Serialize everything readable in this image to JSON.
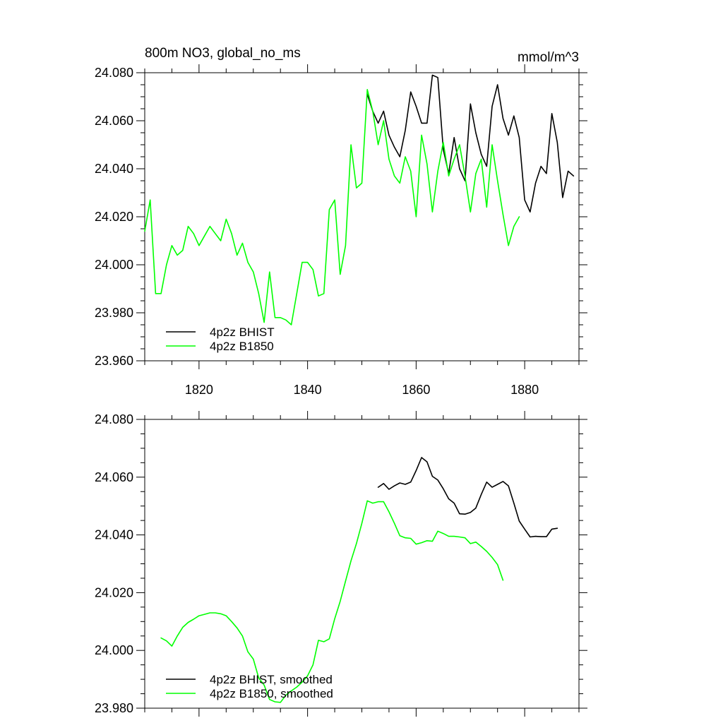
{
  "chart_data": [
    {
      "type": "line",
      "title": "800m NO3, global_no_ms",
      "units": "mmol/m^3",
      "xlabel": "",
      "ylabel": "",
      "xlim": [
        1810,
        1890
      ],
      "ylim": [
        23.96,
        24.08
      ],
      "x_ticks": [
        1820,
        1840,
        1860,
        1880
      ],
      "x_tick_labels": [
        "1820",
        "1840",
        "1860",
        "1880"
      ],
      "y_ticks": [
        23.96,
        23.98,
        24.0,
        24.02,
        24.04,
        24.06,
        24.08
      ],
      "y_tick_labels": [
        "23.960",
        "23.980",
        "24.000",
        "24.020",
        "24.040",
        "24.060",
        "24.080"
      ],
      "legend_position": "bottom-left",
      "series": [
        {
          "name": "4p2z BHIST",
          "color": "#000000",
          "x": [
            1851,
            1852,
            1853,
            1854,
            1855,
            1856,
            1857,
            1858,
            1859,
            1860,
            1861,
            1862,
            1863,
            1864,
            1865,
            1866,
            1867,
            1868,
            1869,
            1870,
            1871,
            1872,
            1873,
            1874,
            1875,
            1876,
            1877,
            1878,
            1879,
            1880,
            1881,
            1882,
            1883,
            1884,
            1885,
            1886,
            1887,
            1888,
            1889
          ],
          "y": [
            24.071,
            24.064,
            24.059,
            24.064,
            24.054,
            24.049,
            24.045,
            24.056,
            24.072,
            24.066,
            24.059,
            24.059,
            24.079,
            24.078,
            24.048,
            24.038,
            24.053,
            24.04,
            24.035,
            24.067,
            24.055,
            24.046,
            24.041,
            24.066,
            24.075,
            24.061,
            24.054,
            24.062,
            24.053,
            24.027,
            24.022,
            24.034,
            24.041,
            24.038,
            24.063,
            24.051,
            24.028,
            24.039,
            24.037
          ]
        },
        {
          "name": "4p2z B1850",
          "color": "#00ff00",
          "x": [
            1810,
            1811,
            1812,
            1813,
            1814,
            1815,
            1816,
            1817,
            1818,
            1819,
            1820,
            1821,
            1822,
            1823,
            1824,
            1825,
            1826,
            1827,
            1828,
            1829,
            1830,
            1831,
            1832,
            1833,
            1834,
            1835,
            1836,
            1837,
            1838,
            1839,
            1840,
            1841,
            1842,
            1843,
            1844,
            1845,
            1846,
            1847,
            1848,
            1849,
            1850,
            1851,
            1852,
            1853,
            1854,
            1855,
            1856,
            1857,
            1858,
            1859,
            1860,
            1861,
            1862,
            1863,
            1864,
            1865,
            1866,
            1867,
            1868,
            1869,
            1870,
            1871,
            1872,
            1873,
            1874,
            1875,
            1876,
            1877,
            1878,
            1879
          ],
          "y": [
            24.014,
            24.027,
            23.988,
            23.988,
            24.0,
            24.008,
            24.004,
            24.006,
            24.016,
            24.013,
            24.008,
            24.012,
            24.016,
            24.013,
            24.01,
            24.019,
            24.013,
            24.004,
            24.009,
            24.001,
            23.997,
            23.988,
            23.976,
            23.997,
            23.978,
            23.978,
            23.977,
            23.975,
            23.988,
            24.001,
            24.001,
            23.998,
            23.987,
            23.988,
            24.023,
            24.027,
            23.996,
            24.008,
            24.05,
            24.032,
            24.034,
            24.073,
            24.064,
            24.05,
            24.06,
            24.044,
            24.037,
            24.034,
            24.045,
            24.039,
            24.02,
            24.054,
            24.042,
            24.022,
            24.039,
            24.051,
            24.037,
            24.044,
            24.05,
            24.037,
            24.022,
            24.038,
            24.044,
            24.024,
            24.05,
            24.035,
            24.021,
            24.008,
            24.016,
            24.02
          ]
        }
      ]
    },
    {
      "type": "line",
      "title": "",
      "xlabel": "",
      "ylabel": "",
      "xlim": [
        1810,
        1890
      ],
      "ylim": [
        23.98,
        24.08
      ],
      "x_ticks": [
        1820,
        1840,
        1860,
        1880
      ],
      "x_tick_labels": [
        "",
        "",
        "",
        ""
      ],
      "y_ticks": [
        23.98,
        24.0,
        24.02,
        24.04,
        24.06,
        24.08
      ],
      "y_tick_labels": [
        "23.980",
        "24.000",
        "24.020",
        "24.040",
        "24.060",
        "24.080"
      ],
      "legend_position": "bottom-left",
      "series": [
        {
          "name": "4p2z BHIST, smoothed",
          "color": "#000000",
          "x": [
            1853,
            1854,
            1855,
            1856,
            1857,
            1858,
            1859,
            1860,
            1861,
            1862,
            1863,
            1864,
            1865,
            1866,
            1867,
            1868,
            1869,
            1870,
            1871,
            1872,
            1873,
            1874,
            1875,
            1876,
            1877,
            1878,
            1879,
            1880,
            1881,
            1882,
            1883,
            1884,
            1885,
            1886
          ],
          "y": [
            24.0565,
            24.0578,
            24.0558,
            24.057,
            24.058,
            24.0575,
            24.0583,
            24.0623,
            24.0668,
            24.0653,
            24.0603,
            24.059,
            24.056,
            24.0525,
            24.051,
            24.0473,
            24.0472,
            24.0478,
            24.0493,
            24.054,
            24.0583,
            24.0565,
            24.0575,
            24.0585,
            24.057,
            24.051,
            24.0448,
            24.042,
            24.0393,
            24.0395,
            24.0394,
            24.0394,
            24.042,
            24.0423
          ]
        },
        {
          "name": "4p2z B1850, smoothed",
          "color": "#00ff00",
          "x": [
            1813,
            1814,
            1815,
            1816,
            1817,
            1818,
            1819,
            1820,
            1821,
            1822,
            1823,
            1824,
            1825,
            1826,
            1827,
            1828,
            1829,
            1830,
            1831,
            1832,
            1833,
            1834,
            1835,
            1836,
            1837,
            1838,
            1839,
            1840,
            1841,
            1842,
            1843,
            1844,
            1845,
            1846,
            1847,
            1848,
            1849,
            1850,
            1851,
            1852,
            1853,
            1854,
            1855,
            1856,
            1857,
            1858,
            1859,
            1860,
            1861,
            1862,
            1863,
            1864,
            1865,
            1866,
            1867,
            1868,
            1869,
            1870,
            1871,
            1872,
            1873,
            1874,
            1875,
            1876
          ],
          "y": [
            24.0043,
            24.0033,
            24.0015,
            24.005,
            24.008,
            24.0097,
            24.0108,
            24.012,
            24.0125,
            24.013,
            24.013,
            24.0127,
            24.012,
            24.01,
            24.0078,
            24.005,
            23.9995,
            23.997,
            23.9905,
            23.988,
            23.983,
            23.9822,
            23.982,
            23.9845,
            23.986,
            23.9873,
            23.989,
            23.9912,
            23.995,
            24.0035,
            24.003,
            24.004,
            24.011,
            24.017,
            24.024,
            24.031,
            24.037,
            24.044,
            24.0518,
            24.051,
            24.0515,
            24.0515,
            24.048,
            24.044,
            24.0397,
            24.039,
            24.0388,
            24.0368,
            24.0373,
            24.038,
            24.0378,
            24.0413,
            24.0405,
            24.0395,
            24.0395,
            24.0393,
            24.039,
            24.037,
            24.0375,
            24.036,
            24.0343,
            24.0322,
            24.0297,
            24.0243
          ]
        }
      ]
    }
  ]
}
